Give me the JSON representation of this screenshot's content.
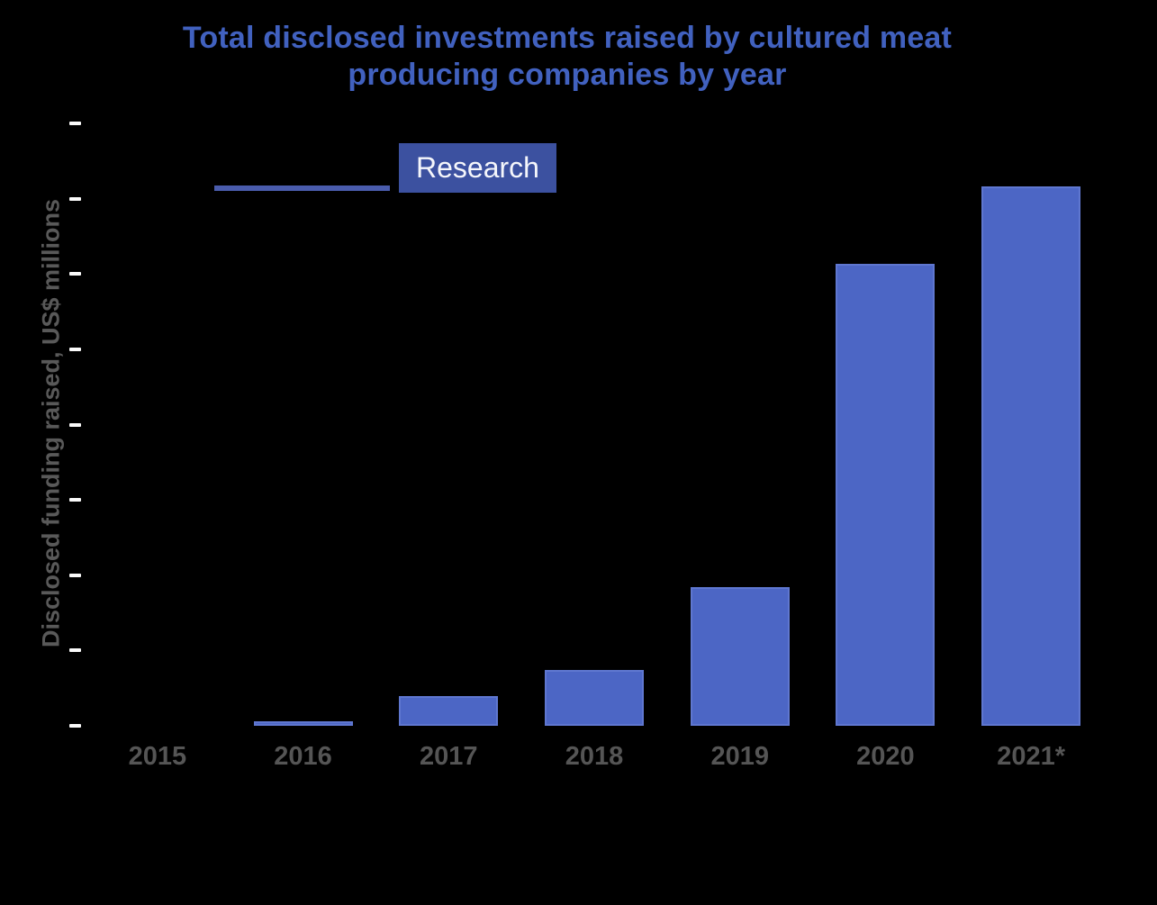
{
  "page": {
    "background": "#000000"
  },
  "title": {
    "line1": "Total disclosed investments raised by cultured meat",
    "line2": "producing companies by year"
  },
  "logo": {
    "badge_label": "Research"
  },
  "colors": {
    "background": "#000000",
    "title": "#4161BF",
    "bar-fill": "#4C66C5",
    "bar-border": "#5F77D0",
    "axis-label": "#595959",
    "x-label": "#555555",
    "tick": "#FAFAFA",
    "badge-bg": "#3C51A0",
    "badge-text": "#F5F6FB",
    "underline": "#4A5CAC"
  },
  "chart_data": {
    "type": "bar",
    "title": "Total disclosed investments raised by cultured meat producing companies by year",
    "categories": [
      "2015",
      "2016",
      "2017",
      "2018",
      "2019",
      "2020",
      "2021*"
    ],
    "values": [
      0,
      6,
      40,
      74,
      184,
      614,
      716
    ],
    "xlabel": "",
    "ylabel": "Disclosed funding raised, US$ millions",
    "ylim": [
      0,
      800
    ],
    "y_tick_count": 9,
    "y_tick_interval_assumed": 100,
    "y_tick_labels_visible": false,
    "values_estimated_from_bar_heights": true,
    "grid": false,
    "legend": false
  }
}
